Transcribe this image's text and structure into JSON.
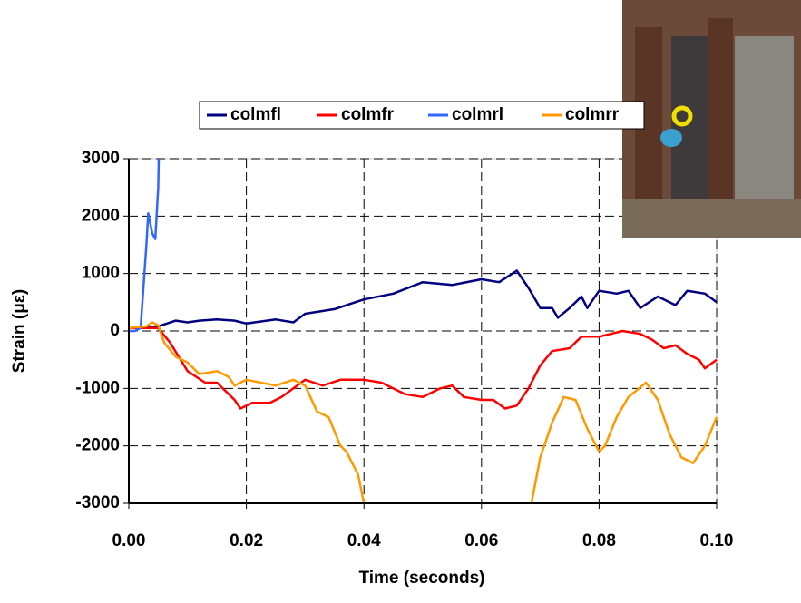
{
  "chart_data": {
    "type": "line",
    "x_label": "Time (seconds)",
    "y_label": "Strain (με)",
    "xlim": [
      0,
      0.1
    ],
    "xticks": [
      {
        "value": 0,
        "label": "0.00"
      },
      {
        "value": 0.02,
        "label": "0.02"
      },
      {
        "value": 0.04,
        "label": "0.04"
      },
      {
        "value": 0.06,
        "label": "0.06"
      },
      {
        "value": 0.08,
        "label": "0.08"
      },
      {
        "value": 0.1,
        "label": "0.10"
      }
    ],
    "ylim": [
      -3000,
      3000
    ],
    "yticks": [
      -3000,
      -2000,
      -1000,
      0,
      1000,
      2000,
      3000
    ],
    "grid": true,
    "series": [
      {
        "name": "colmfl",
        "color": "#000080",
        "x": [
          0,
          0.005,
          0.008,
          0.01,
          0.012,
          0.015,
          0.018,
          0.02,
          0.025,
          0.028,
          0.03,
          0.035,
          0.04,
          0.045,
          0.05,
          0.055,
          0.06,
          0.063,
          0.066,
          0.068,
          0.07,
          0.072,
          0.073,
          0.075,
          0.077,
          0.078,
          0.08,
          0.083,
          0.085,
          0.087,
          0.09,
          0.093,
          0.095,
          0.098,
          0.1
        ],
        "values": [
          50,
          80,
          180,
          150,
          180,
          200,
          180,
          130,
          200,
          150,
          300,
          380,
          550,
          650,
          850,
          800,
          900,
          850,
          1050,
          750,
          400,
          400,
          230,
          400,
          600,
          400,
          700,
          650,
          700,
          400,
          600,
          450,
          700,
          650,
          500
        ]
      },
      {
        "name": "colmfr",
        "color": "#ff0000",
        "x": [
          0,
          0.005,
          0.007,
          0.01,
          0.013,
          0.015,
          0.018,
          0.019,
          0.021,
          0.024,
          0.026,
          0.028,
          0.03,
          0.033,
          0.036,
          0.04,
          0.043,
          0.047,
          0.05,
          0.053,
          0.055,
          0.057,
          0.06,
          0.062,
          0.064,
          0.066,
          0.068,
          0.07,
          0.072,
          0.075,
          0.077,
          0.08,
          0.082,
          0.084,
          0.087,
          0.089,
          0.091,
          0.093,
          0.095,
          0.097,
          0.098,
          0.1
        ],
        "values": [
          50,
          50,
          -200,
          -700,
          -900,
          -900,
          -1200,
          -1350,
          -1250,
          -1250,
          -1150,
          -1000,
          -850,
          -950,
          -850,
          -850,
          -900,
          -1100,
          -1150,
          -1000,
          -950,
          -1150,
          -1200,
          -1200,
          -1350,
          -1300,
          -1000,
          -600,
          -350,
          -300,
          -100,
          -100,
          -50,
          0,
          -50,
          -150,
          -300,
          -250,
          -400,
          -500,
          -650,
          -500
        ]
      },
      {
        "name": "colmrl",
        "color": "#3366ff",
        "x": [
          0,
          0.001,
          0.002,
          0.003,
          0.0033,
          0.004,
          0.0045,
          0.005,
          0.0051
        ],
        "values": [
          0,
          0,
          50,
          1500,
          2050,
          1700,
          1600,
          2500,
          3000
        ]
      },
      {
        "name": "colmrr",
        "color": "#ff9900",
        "x": [
          0,
          0.003,
          0.004,
          0.005,
          0.006,
          0.008,
          0.01,
          0.012,
          0.015,
          0.017,
          0.018,
          0.02,
          0.025,
          0.028,
          0.03,
          0.032,
          0.034,
          0.036,
          0.037,
          0.039,
          0.04,
          0.05,
          0.0685,
          0.07,
          0.072,
          0.074,
          0.076,
          0.078,
          0.08,
          0.081,
          0.083,
          0.085,
          0.088,
          0.09,
          0.092,
          0.094,
          0.096,
          0.098,
          0.1
        ],
        "values": [
          50,
          80,
          150,
          100,
          -200,
          -450,
          -550,
          -750,
          -700,
          -800,
          -950,
          -850,
          -950,
          -850,
          -950,
          -1400,
          -1500,
          -2000,
          -2100,
          -2500,
          -3000,
          null,
          -3000,
          -2200,
          -1600,
          -1150,
          -1200,
          -1700,
          -2100,
          -2000,
          -1500,
          -1150,
          -900,
          -1200,
          -1800,
          -2200,
          -2300,
          -2000,
          -1500
        ]
      }
    ]
  }
}
